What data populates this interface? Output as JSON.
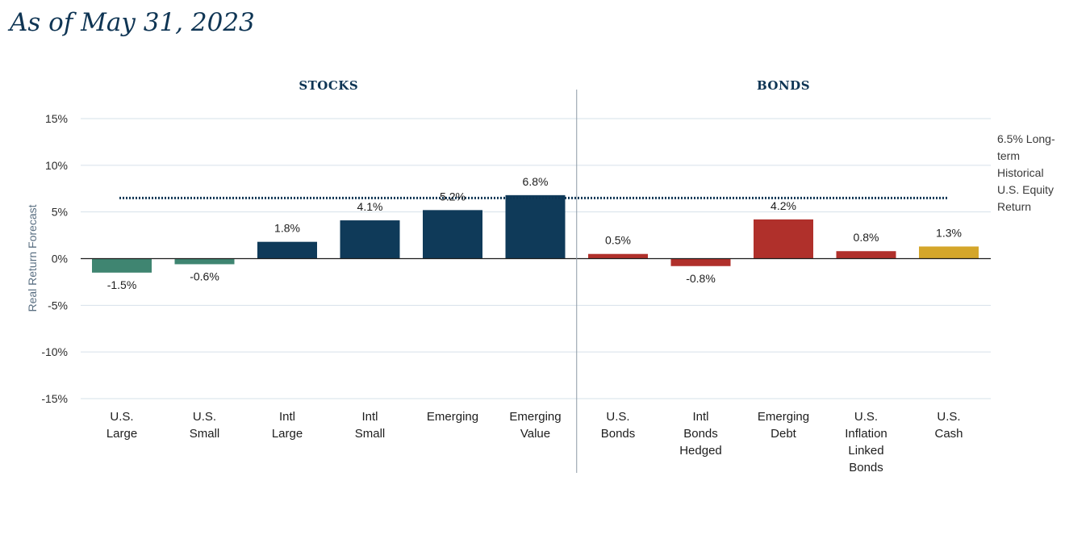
{
  "title": "As of May 31, 2023",
  "chart_data": {
    "type": "bar",
    "ylabel": "Real Return Forecast",
    "ylim": [
      -15,
      15
    ],
    "yticks": [
      15,
      10,
      5,
      0,
      -5,
      -10,
      -15
    ],
    "ytick_labels": [
      "15%",
      "10%",
      "5%",
      "0%",
      "-5%",
      "-10%",
      "-15%"
    ],
    "grid": true,
    "groups": [
      {
        "label": "STOCKS",
        "start": 0,
        "end": 5
      },
      {
        "label": "BONDS",
        "start": 6,
        "end": 10
      }
    ],
    "categories": [
      [
        "U.S.",
        "Large"
      ],
      [
        "U.S.",
        "Small"
      ],
      [
        "Intl",
        "Large"
      ],
      [
        "Intl",
        "Small"
      ],
      [
        "Emerging"
      ],
      [
        "Emerging",
        "Value"
      ],
      [
        "U.S.",
        "Bonds"
      ],
      [
        "Intl",
        "Bonds",
        "Hedged"
      ],
      [
        "Emerging",
        "Debt"
      ],
      [
        "U.S.",
        "Inflation",
        "Linked",
        "Bonds"
      ],
      [
        "U.S.",
        "Cash"
      ]
    ],
    "values": [
      -1.5,
      -0.6,
      1.8,
      4.1,
      5.2,
      6.8,
      0.5,
      -0.8,
      4.2,
      0.8,
      1.3
    ],
    "value_labels": [
      "-1.5%",
      "-0.6%",
      "1.8%",
      "4.1%",
      "5.2%",
      "6.8%",
      "0.5%",
      "-0.8%",
      "4.2%",
      "0.8%",
      "1.3%"
    ],
    "colors": [
      "#3f8571",
      "#3f8571",
      "#0f3a59",
      "#0f3a59",
      "#0f3a59",
      "#0f3a59",
      "#b0302b",
      "#b0302b",
      "#b0302b",
      "#b0302b",
      "#d4a62a"
    ],
    "reference_line": {
      "value": 6.5,
      "style": "dotted",
      "color": "#0f3554",
      "label_lines": [
        "6.5% Long-",
        "term",
        "Historical",
        "U.S. Equity",
        "Return"
      ]
    },
    "colors_meta": {
      "grid": "#d6e1ea",
      "axis": "#1d1d1d",
      "divider": "#8d9aa5"
    }
  }
}
